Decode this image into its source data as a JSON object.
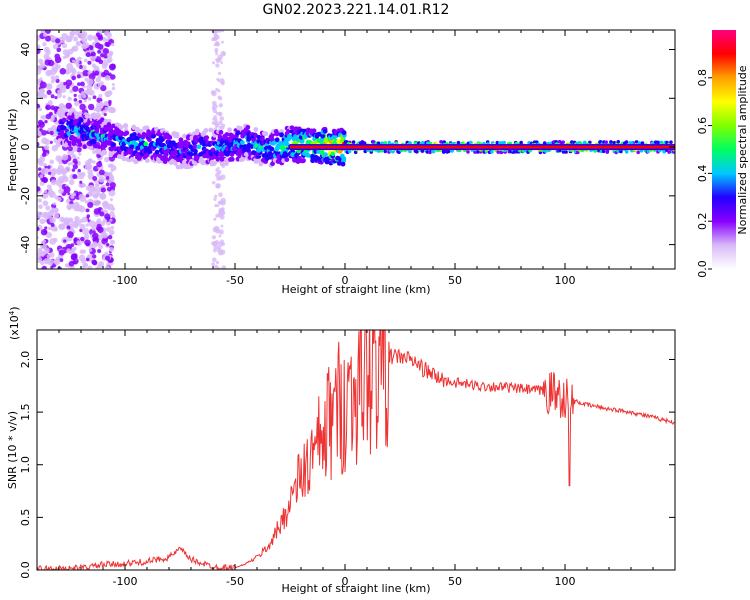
{
  "figure_title": "GN02.2023.221.14.01.R12",
  "chart_data": [
    {
      "type": "heatmap",
      "xlabel": "Height of straight line (km)",
      "ylabel": "Frequency (Hz)",
      "xlim": [
        -140,
        150
      ],
      "ylim": [
        -50,
        48
      ],
      "xticks": [
        -100,
        -50,
        0,
        50,
        100
      ],
      "yticks": [
        -40,
        -20,
        0,
        20,
        40
      ],
      "colorbar": {
        "label": "Normalized spectral amplitude",
        "range": [
          0,
          1
        ],
        "ticks": [
          0.0,
          0.2,
          0.4,
          0.6,
          0.8
        ],
        "tick_labels": [
          "0.0",
          "0.2",
          "0.4",
          "0.6",
          "0.8"
        ],
        "colormap": [
          "#ffffff",
          "#d8b8f8",
          "#8800ff",
          "#2200ff",
          "#00c8ff",
          "#00ff60",
          "#80ff00",
          "#ffff00",
          "#ffa000",
          "#ff0000",
          "#ff0080"
        ]
      },
      "ridge": {
        "x": [
          -128,
          -115,
          -105,
          -95,
          -85,
          -75,
          -65,
          -55,
          -45,
          -35,
          -25,
          -15,
          -5,
          0,
          50,
          100,
          150
        ],
        "frequency": [
          8,
          6,
          3,
          1,
          1,
          -2,
          0,
          0,
          2,
          -1,
          1,
          1,
          0,
          0,
          0,
          0,
          0
        ],
        "peak_amplitude": [
          0.4,
          0.45,
          0.4,
          0.45,
          0.4,
          0.35,
          0.4,
          0.4,
          0.45,
          0.45,
          0.6,
          0.75,
          0.9,
          0.95,
          0.95,
          0.95,
          0.95
        ]
      }
    },
    {
      "type": "line",
      "xlabel": "Height of straight line (km)",
      "ylabel": "SNR (10 * v/v)",
      "y_multiplier": "(x10",
      "y_exponent": "4",
      "xlim": [
        -140,
        150
      ],
      "ylim": [
        0,
        2.28
      ],
      "xticks": [
        -100,
        -50,
        0,
        50,
        100
      ],
      "yticks": [
        0.0,
        0.5,
        1.0,
        1.5,
        2.0
      ],
      "series": [
        {
          "color": "#ee3333",
          "x": [
            -140,
            -120,
            -110,
            -100,
            -90,
            -80,
            -75,
            -70,
            -60,
            -50,
            -45,
            -40,
            -35,
            -30,
            -25,
            -20,
            -15,
            -10,
            -5,
            0,
            5,
            10,
            15,
            20,
            25,
            30,
            35,
            40,
            45,
            50,
            60,
            70,
            80,
            90,
            95,
            100,
            102,
            105,
            110,
            120,
            130,
            140,
            150
          ],
          "y": [
            0.01,
            0.02,
            0.05,
            0.06,
            0.08,
            0.12,
            0.2,
            0.1,
            0.03,
            0.02,
            0.06,
            0.12,
            0.22,
            0.4,
            0.65,
            0.9,
            1.05,
            1.25,
            1.5,
            1.6,
            1.72,
            1.85,
            1.95,
            2.02,
            2.03,
            2.0,
            1.92,
            1.85,
            1.8,
            1.78,
            1.75,
            1.74,
            1.72,
            1.7,
            1.68,
            1.65,
            1.58,
            1.6,
            1.57,
            1.53,
            1.5,
            1.45,
            1.4
          ]
        }
      ]
    }
  ]
}
